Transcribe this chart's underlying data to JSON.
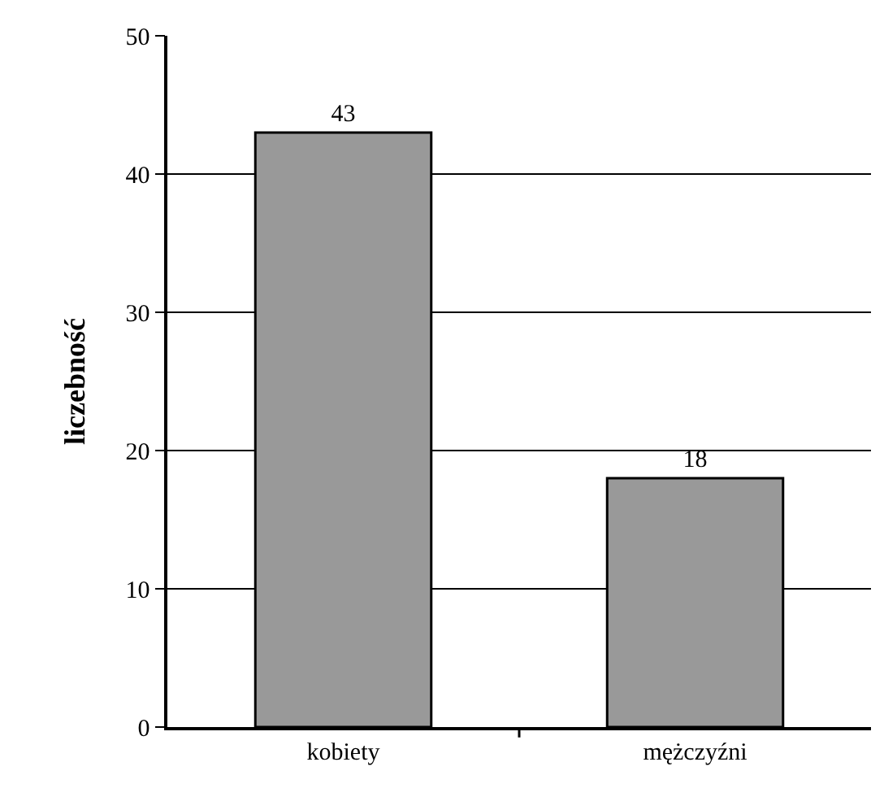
{
  "chart_data": {
    "type": "bar",
    "categories": [
      "kobiety",
      "mężczyźni"
    ],
    "values": [
      43,
      18
    ],
    "color": "#999999",
    "ylabel": "liczebność",
    "ylim": [
      0,
      50
    ],
    "yticks": [
      0,
      10,
      20,
      30,
      40,
      50
    ],
    "grid": "y",
    "data_labels": true
  }
}
